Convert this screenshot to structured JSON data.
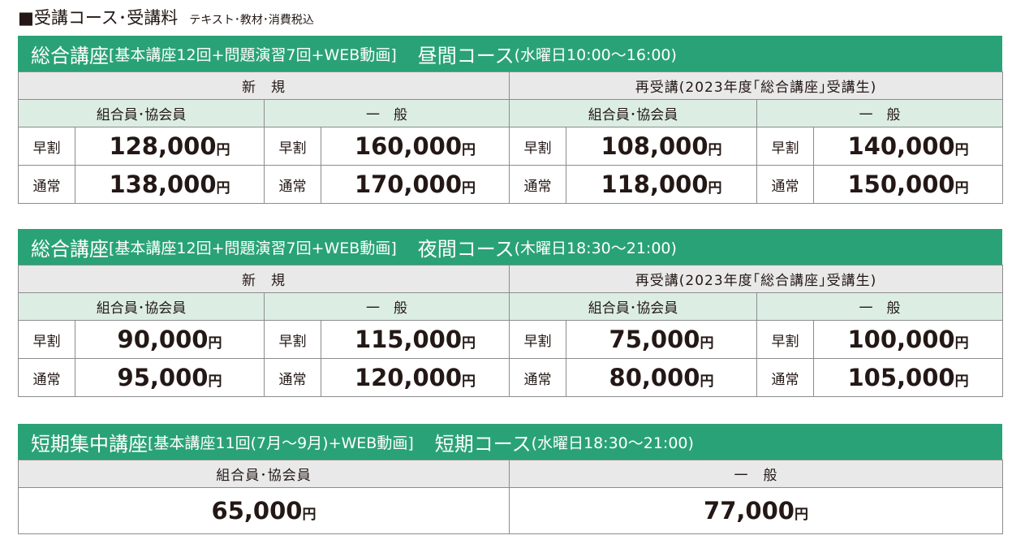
{
  "page": {
    "title": "■受講コース･受講料",
    "note": "テキスト･教材･消費税込"
  },
  "courses": [
    {
      "name": "総合講座",
      "detail": "[基本講座12回+問題演習7回+WEB動画]",
      "course": "昼間コース",
      "time": "(水曜日10:00～16:00)",
      "categories": [
        "新　規",
        "再受講(2023年度｢総合講座｣受講生)"
      ],
      "subs": [
        "組合員･協会員",
        "一　般",
        "組合員･協会員",
        "一　般"
      ],
      "rows": [
        {
          "label": "早割",
          "prices": [
            "128,000",
            "160,000",
            "108,000",
            "140,000"
          ]
        },
        {
          "label": "通常",
          "prices": [
            "138,000",
            "170,000",
            "118,000",
            "150,000"
          ]
        }
      ]
    },
    {
      "name": "総合講座",
      "detail": "[基本講座12回+問題演習7回+WEB動画]",
      "course": "夜間コース",
      "time": "(木曜日18:30～21:00)",
      "categories": [
        "新　規",
        "再受講(2023年度｢総合講座｣受講生)"
      ],
      "subs": [
        "組合員･協会員",
        "一　般",
        "組合員･協会員",
        "一　般"
      ],
      "rows": [
        {
          "label": "早割",
          "prices": [
            "90,000",
            "115,000",
            "75,000",
            "100,000"
          ]
        },
        {
          "label": "通常",
          "prices": [
            "95,000",
            "120,000",
            "80,000",
            "105,000"
          ]
        }
      ]
    }
  ],
  "short_course": {
    "name": "短期集中講座",
    "detail": "[基本講座11回(7月～9月)+WEB動画]",
    "course": "短期コース",
    "time": "(水曜日18:30～21:00)",
    "subs": [
      "組合員･協会員",
      "一　般"
    ],
    "prices": [
      "65,000",
      "77,000"
    ]
  },
  "currency": "円",
  "colors": {
    "header_green": "#2aa277",
    "sub_green": "#dceee4",
    "category_gray": "#e9e9e9"
  }
}
